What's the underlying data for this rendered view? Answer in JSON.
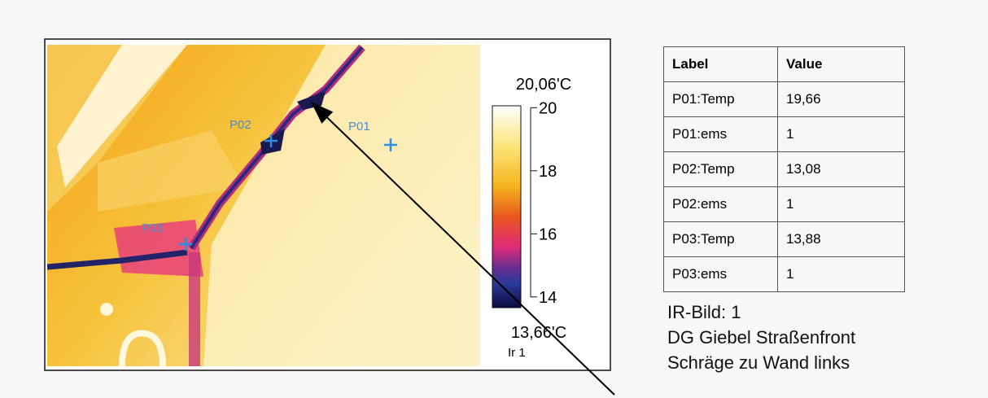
{
  "thermal_image": {
    "id_label": "Ir 1",
    "points": [
      "P01",
      "P02",
      "P03"
    ],
    "colorbar": {
      "ends": [
        {
          "value": 20.06,
          "label": "20,06'C"
        },
        {
          "value": 13.66,
          "label": "13,66'C"
        }
      ],
      "ticks": [
        20,
        18,
        16,
        14
      ]
    }
  },
  "table": {
    "header": [
      "Label",
      "Value"
    ],
    "rows": [
      [
        "P01:Temp",
        "19,66"
      ],
      [
        "P01:ems",
        "1"
      ],
      [
        "P02:Temp",
        "13,08"
      ],
      [
        "P02:ems",
        "1"
      ],
      [
        "P03:Temp",
        "13,88"
      ],
      [
        "P03:ems",
        "1"
      ]
    ]
  },
  "caption": [
    "IR-Bild: 1",
    "DG Giebel Straßenfront",
    "Schräge zu Wand links"
  ]
}
